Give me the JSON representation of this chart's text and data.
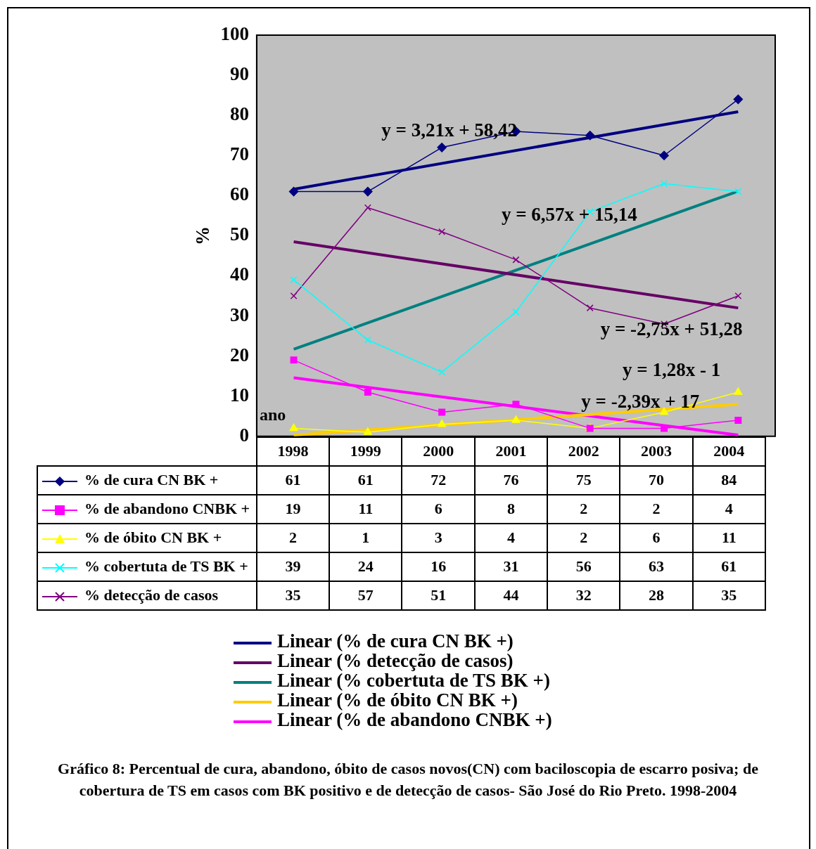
{
  "chart_data": {
    "type": "line",
    "xlabel": "ano",
    "ylabel": "%",
    "categories": [
      "1998",
      "1999",
      "2000",
      "2001",
      "2002",
      "2003",
      "2004"
    ],
    "ylim": [
      0,
      100
    ],
    "yticks": [
      0,
      10,
      20,
      30,
      40,
      50,
      60,
      70,
      80,
      90,
      100
    ],
    "grid": false,
    "legend": "bottom",
    "series": [
      {
        "name": "% de cura CN BK +",
        "color": "#000080",
        "marker": "diamond",
        "values": [
          61,
          61,
          72,
          76,
          75,
          70,
          84
        ],
        "value_labels": [
          "61",
          "61",
          "72",
          "76",
          "75",
          "70",
          "84"
        ]
      },
      {
        "name": "% de abandono CNBK +",
        "color": "#ff00ff",
        "marker": "square",
        "values": [
          19,
          11,
          6,
          8,
          2,
          2,
          4
        ],
        "value_labels": [
          "19",
          "11",
          "6",
          "8",
          "2",
          "2",
          "4"
        ]
      },
      {
        "name": "% de óbito CN BK +",
        "color": "#ffff00",
        "marker": "triangle",
        "values": [
          2,
          1,
          3,
          4,
          2,
          6,
          11
        ],
        "value_labels": [
          "2",
          "1",
          "3",
          "4",
          "2",
          "6",
          "11"
        ]
      },
      {
        "name": "% cobertuta de TS BK +",
        "color": "#00ffff",
        "marker": "cross",
        "values": [
          39,
          24,
          16,
          31,
          56,
          63,
          61
        ],
        "value_labels": [
          "39",
          "24",
          "16",
          "31",
          "56",
          "63",
          "61"
        ]
      },
      {
        "name": "% detecção de casos",
        "color": "#800080",
        "marker": "cross",
        "values": [
          35,
          57,
          51,
          44,
          32,
          28,
          35
        ],
        "value_labels": [
          "35",
          "57",
          "51",
          "44",
          "32",
          "28",
          "35"
        ]
      },
      {
        "name": "Linear (% de cura CN BK +)",
        "type": "line",
        "color": "#000080",
        "marker": "none",
        "values": [
          61.6,
          null,
          null,
          null,
          null,
          null,
          80.9
        ]
      },
      {
        "name": "Linear (% detecção de casos)",
        "type": "line",
        "color": "#660066",
        "marker": "none",
        "values": [
          48.5,
          null,
          null,
          null,
          null,
          null,
          32.0
        ]
      },
      {
        "name": "Linear (% cobertuta de TS BK +)",
        "type": "line",
        "color": "#008080",
        "marker": "none",
        "values": [
          21.7,
          null,
          null,
          null,
          null,
          null,
          61.1
        ]
      },
      {
        "name": "Linear (% de óbito CN BK +)",
        "type": "line",
        "color": "#ffcc00",
        "marker": "none",
        "values": [
          0.3,
          null,
          null,
          null,
          null,
          null,
          8.0
        ]
      },
      {
        "name": "Linear (% de abandono CNBK +)",
        "type": "line",
        "color": "#ff00ff",
        "marker": "none",
        "values": [
          14.6,
          null,
          null,
          null,
          null,
          null,
          0.3
        ]
      }
    ],
    "annotations": [
      "y = 3,21x + 58,42",
      "y = -2,75x + 51,28",
      "y = 6,57x + 15,14",
      "y = 1,28x - 1",
      "y = -2,39x + 17",
      "Gráfico 8: Percentual de cura, abandono, óbito de casos novos(CN) com baciloscopia de escarro posiva; de cobertura de TS em casos com BK positivo e de detecção de casos- São José do Rio Preto. 1998-2004"
    ]
  }
}
